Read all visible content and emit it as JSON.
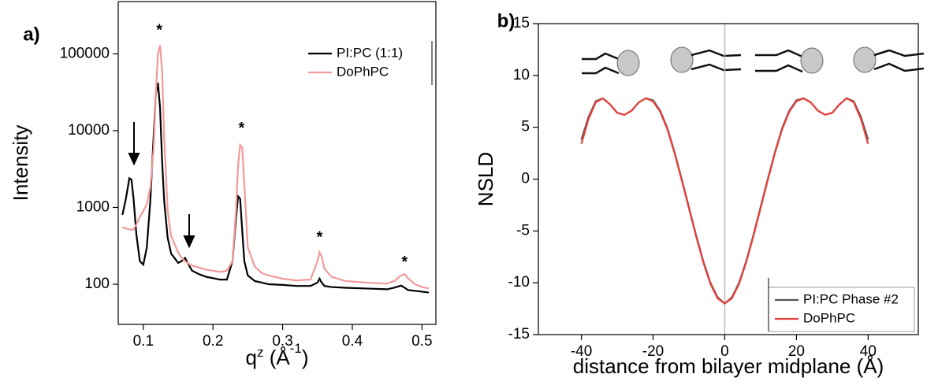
{
  "chart_data": [
    {
      "type": "line",
      "panel_label": "a)",
      "ylabel": "Intensity",
      "xlabel": [
        "q",
        "z",
        " (Å",
        "-1",
        ")"
      ],
      "yscale": "log",
      "xlim": [
        0.064,
        0.52
      ],
      "ylim": [
        30,
        480000
      ],
      "xticks": [
        0.1,
        0.2,
        0.3,
        0.4,
        0.5
      ],
      "yticks": [
        100,
        1000,
        10000,
        100000
      ],
      "legend": "upper right",
      "x": [
        0.07,
        0.075,
        0.08,
        0.083,
        0.086,
        0.09,
        0.095,
        0.1,
        0.105,
        0.11,
        0.115,
        0.118,
        0.121,
        0.124,
        0.127,
        0.13,
        0.135,
        0.14,
        0.15,
        0.155,
        0.16,
        0.165,
        0.17,
        0.18,
        0.19,
        0.2,
        0.21,
        0.22,
        0.228,
        0.233,
        0.236,
        0.239,
        0.242,
        0.245,
        0.25,
        0.26,
        0.27,
        0.28,
        0.3,
        0.32,
        0.34,
        0.35,
        0.353,
        0.356,
        0.36,
        0.37,
        0.39,
        0.42,
        0.45,
        0.46,
        0.47,
        0.475,
        0.48,
        0.49,
        0.5,
        0.51
      ],
      "series": [
        {
          "name": "PI:PC (1:1)",
          "color": "#000000",
          "values": [
            800,
            1300,
            2400,
            2300,
            1300,
            450,
            200,
            180,
            300,
            1200,
            9000,
            30000,
            42000,
            20000,
            4000,
            1200,
            400,
            250,
            190,
            200,
            220,
            180,
            150,
            135,
            125,
            120,
            115,
            115,
            200,
            700,
            1400,
            1300,
            500,
            200,
            130,
            110,
            105,
            100,
            98,
            95,
            95,
            105,
            118,
            105,
            95,
            92,
            90,
            88,
            86,
            90,
            96,
            90,
            84,
            82,
            80,
            78
          ]
        },
        {
          "name": "DoPhPC",
          "color": "#f29a9a",
          "values": [
            550,
            530,
            520,
            510,
            520,
            600,
            750,
            900,
            1100,
            1800,
            6000,
            30000,
            100000,
            130000,
            60000,
            8000,
            900,
            420,
            260,
            220,
            200,
            185,
            175,
            165,
            155,
            150,
            145,
            150,
            200,
            900,
            3500,
            6500,
            6000,
            2000,
            300,
            170,
            140,
            130,
            118,
            112,
            115,
            200,
            260,
            230,
            160,
            125,
            110,
            105,
            102,
            110,
            130,
            135,
            120,
            100,
            92,
            88
          ]
        }
      ],
      "annotations": [
        {
          "text": "*",
          "x": 0.123,
          "y": 200000
        },
        {
          "text": "*",
          "x": 0.241,
          "y": 10500
        },
        {
          "text": "*",
          "x": 0.353,
          "y": 400
        },
        {
          "text": "*",
          "x": 0.475,
          "y": 190
        }
      ]
    },
    {
      "type": "line",
      "panel_label": "b)",
      "ylabel": "NSLD",
      "xlabel": [
        "distance from bilayer midplane (Å)"
      ],
      "xlim": [
        -52,
        54
      ],
      "ylim": [
        -15,
        15
      ],
      "xticks": [
        -40,
        -20,
        0,
        20,
        40
      ],
      "yticks": [
        -15,
        -10,
        -5,
        0,
        5,
        10,
        15
      ],
      "reference_line_x": 0,
      "legend": "lower right",
      "x": [
        -40,
        -38,
        -36,
        -34,
        -32,
        -30,
        -28,
        -26,
        -24,
        -22,
        -20,
        -18,
        -16,
        -14,
        -12,
        -10,
        -8,
        -6,
        -4,
        -2,
        0,
        2,
        4,
        6,
        8,
        10,
        12,
        14,
        16,
        18,
        20,
        22,
        24,
        26,
        28,
        30,
        32,
        34,
        36,
        38,
        40
      ],
      "series": [
        {
          "name": "PI:PC Phase #2",
          "color": "#555555",
          "values": [
            3.8,
            6.0,
            7.5,
            7.8,
            7.2,
            6.4,
            6.2,
            6.6,
            7.4,
            7.8,
            7.6,
            6.6,
            4.9,
            2.6,
            0.0,
            -2.7,
            -5.4,
            -7.9,
            -10.0,
            -11.4,
            -12.0,
            -11.4,
            -10.0,
            -7.9,
            -5.4,
            -2.7,
            0.0,
            2.6,
            4.9,
            6.6,
            7.6,
            7.8,
            7.4,
            6.6,
            6.2,
            6.4,
            7.2,
            7.8,
            7.5,
            6.0,
            3.8
          ]
        },
        {
          "name": "DoPhPC",
          "color": "#e8403a",
          "values": [
            3.4,
            5.8,
            7.4,
            7.8,
            7.2,
            6.4,
            6.2,
            6.6,
            7.4,
            7.8,
            7.5,
            6.5,
            4.8,
            2.5,
            -0.1,
            -2.8,
            -5.5,
            -8.0,
            -10.1,
            -11.5,
            -12.0,
            -11.5,
            -10.1,
            -8.0,
            -5.5,
            -2.8,
            -0.1,
            2.5,
            4.8,
            6.5,
            7.5,
            7.8,
            7.4,
            6.6,
            6.2,
            6.4,
            7.2,
            7.8,
            7.4,
            5.8,
            3.4
          ]
        }
      ]
    }
  ]
}
